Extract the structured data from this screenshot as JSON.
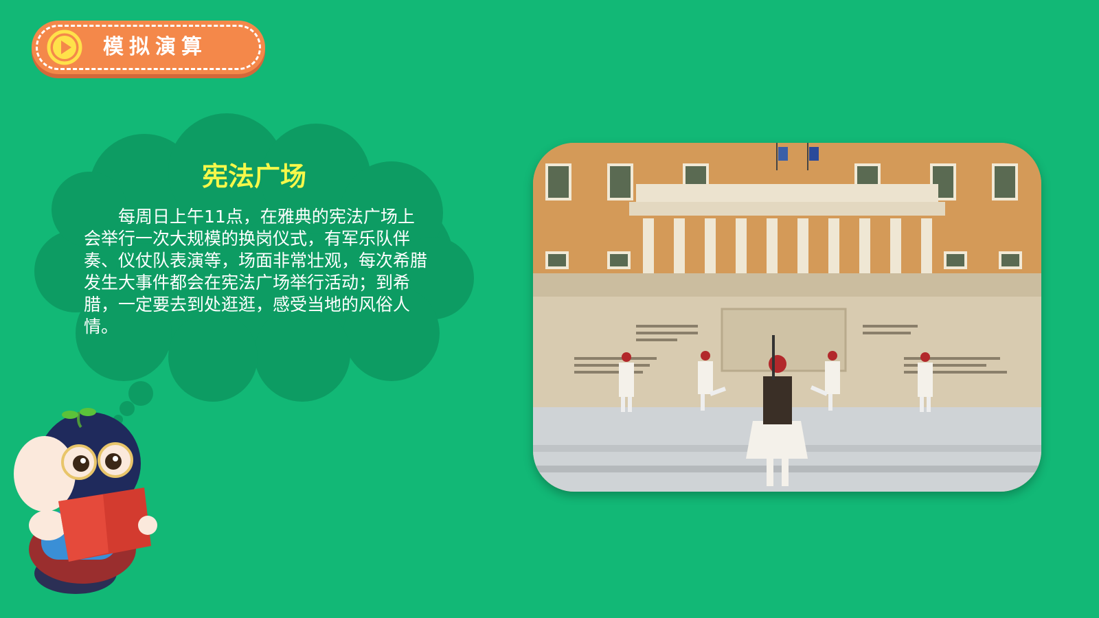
{
  "header": {
    "label": "模拟演算",
    "icon": "play-icon"
  },
  "cloud": {
    "title": "宪法广场",
    "body": "每周日上午11点，在雅典的宪法广场上会举行一次大规模的换岗仪式，有军乐队伴奏、仪仗队表演等，场面非常壮观，每次希腊发生大事件都会在宪法广场举行活动；到希腊，一定要去到处逛逛，感受当地的风俗人情。"
  },
  "colors": {
    "background": "#12b876",
    "pill": "#f4884a",
    "cloud": "#0d9c63",
    "title": "#f6f84a"
  }
}
